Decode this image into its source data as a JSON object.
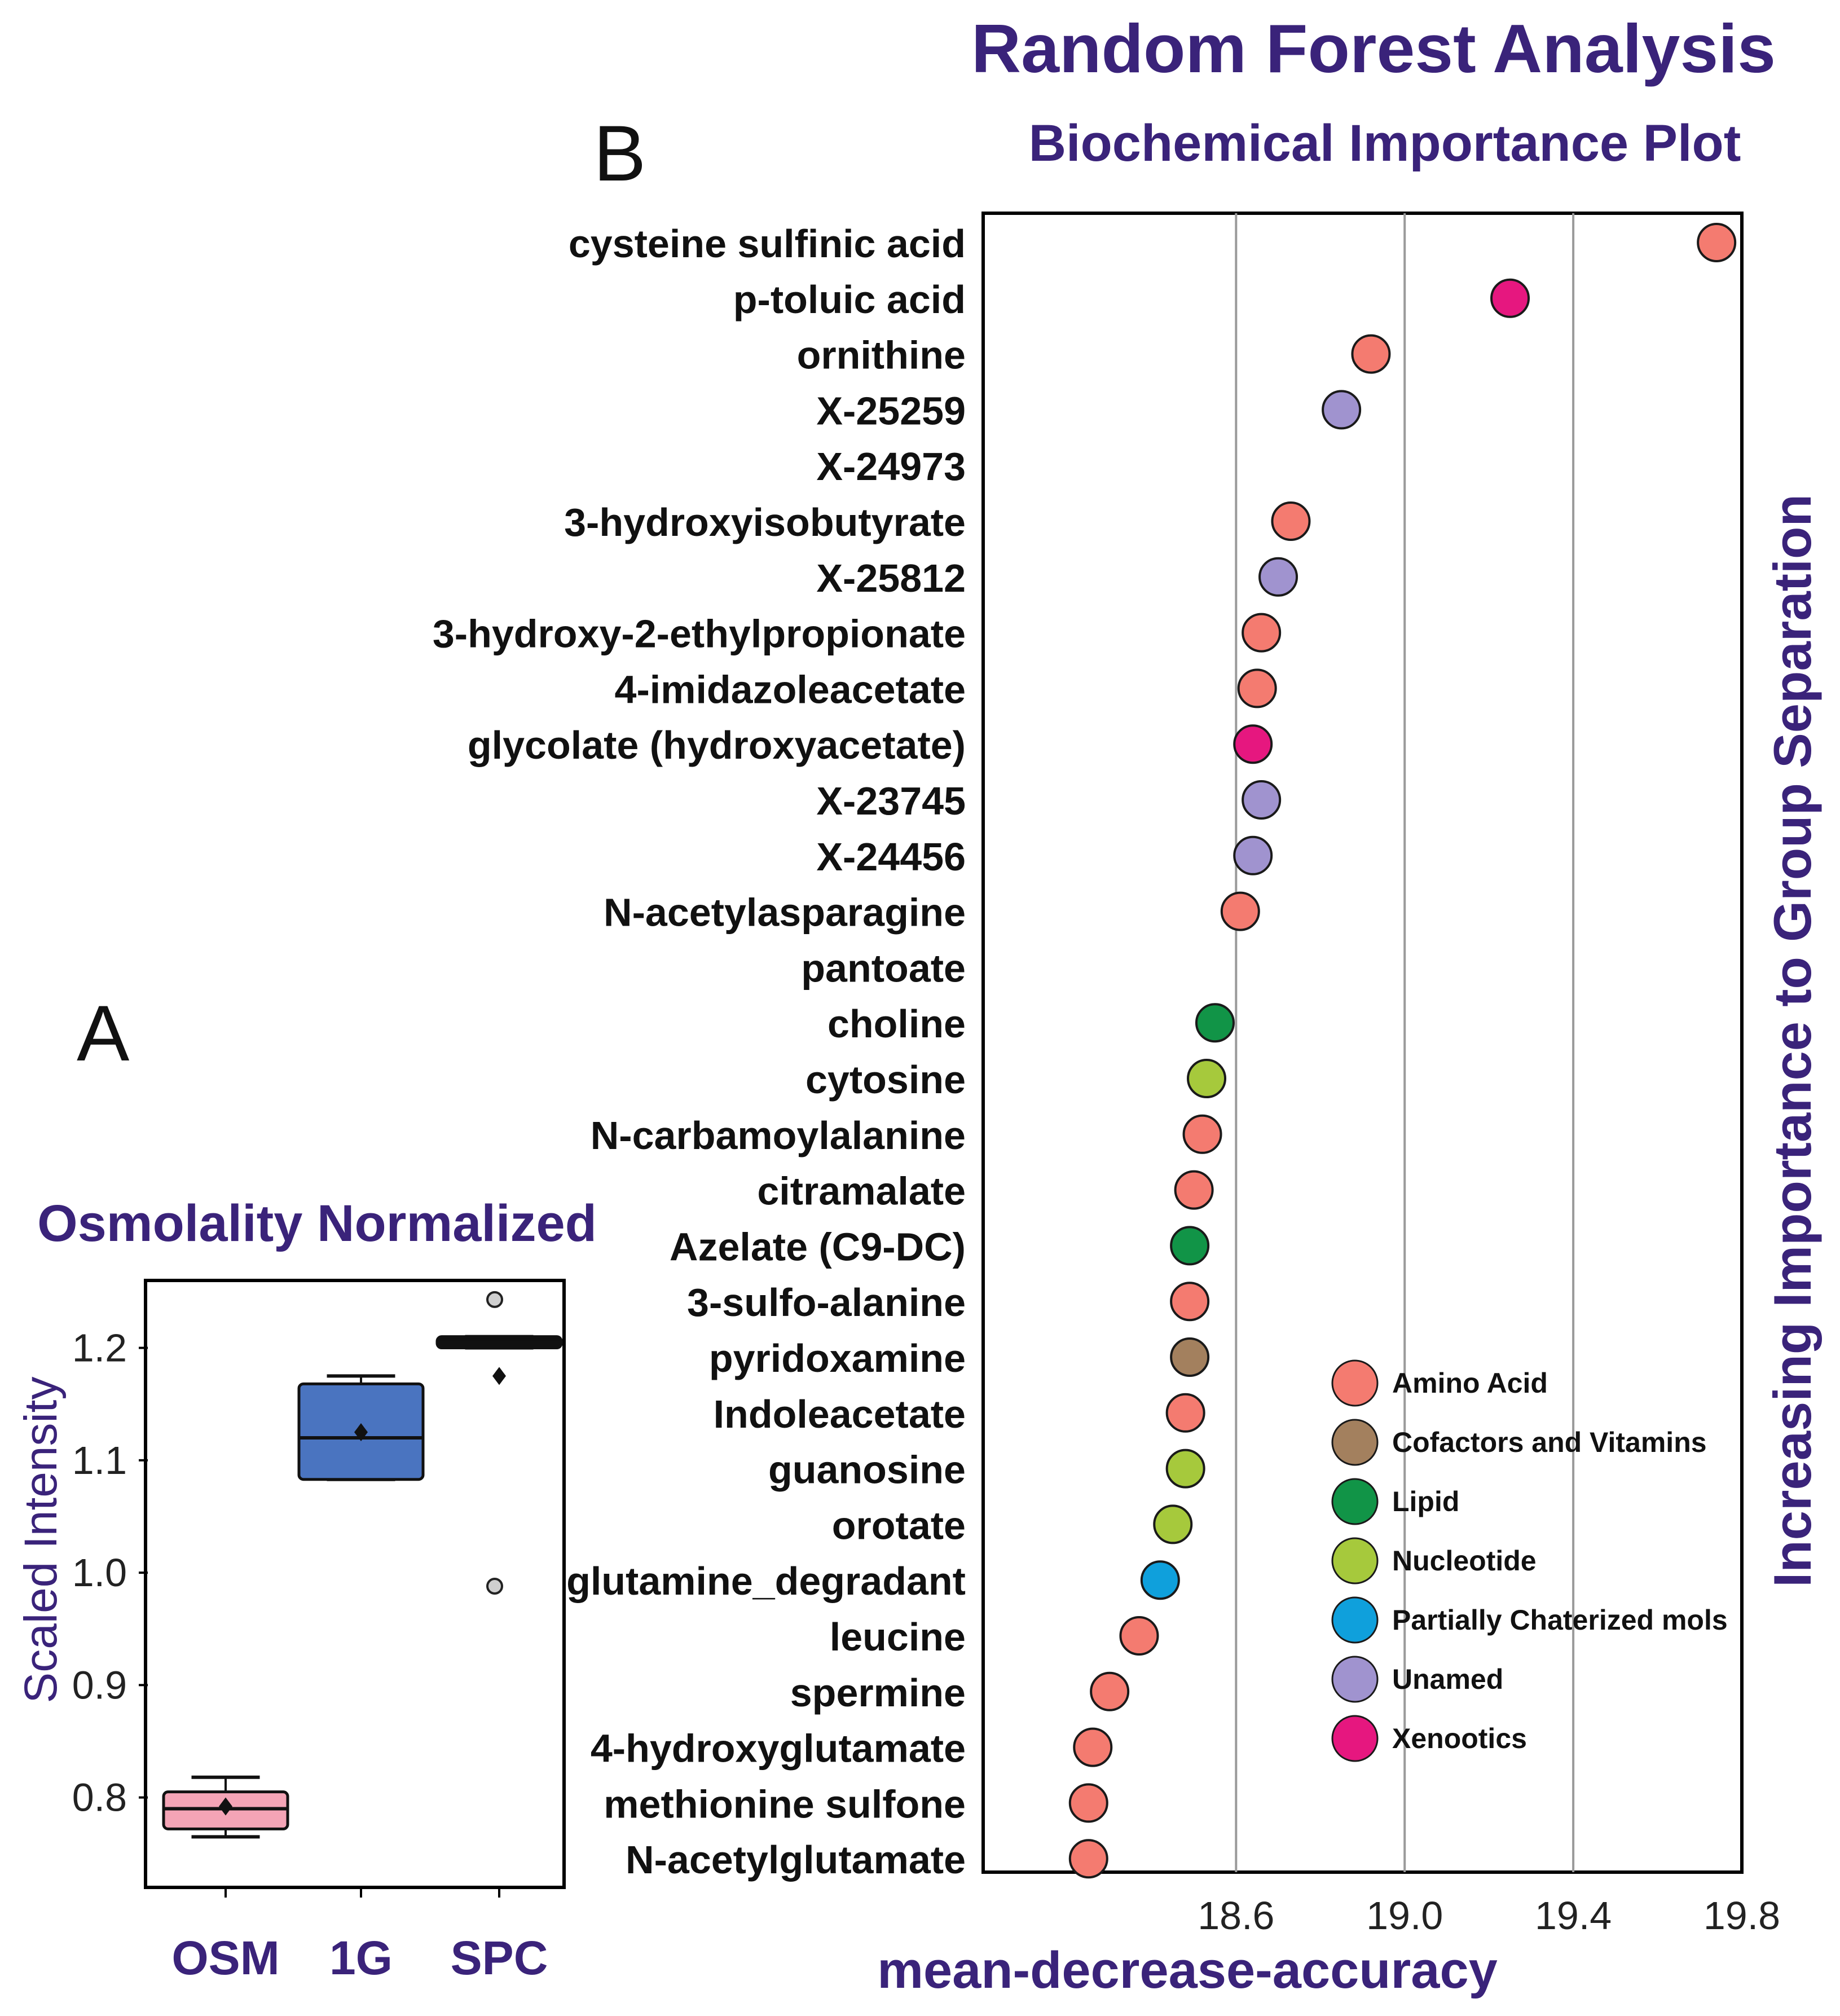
{
  "panel_labels": {
    "a": "A",
    "b": "B"
  },
  "colors": {
    "title": "#3a237a",
    "amino_acid": "#f47b70",
    "cofactors": "#a3805e",
    "lipid": "#119447",
    "nucleotide": "#a6c93c",
    "partially": "#0fa0dc",
    "unnamed": "#a093cf",
    "xenobiotics": "#e6177f",
    "box_osm": "#f4a4b6",
    "box_1g": "#4a74c0",
    "grid": "#9a9a9a"
  },
  "chart_data": [
    {
      "id": "A",
      "type": "box",
      "title": "Osmolality Normalized",
      "xlabel": "",
      "ylabel": "Scaled Intensity",
      "ylim": [
        0.72,
        1.26
      ],
      "yticks": [
        0.8,
        0.9,
        1.0,
        1.1,
        1.2
      ],
      "ytick_labels": [
        "0.8",
        "0.9",
        "1.0",
        "1.1",
        "1.2"
      ],
      "categories": [
        "OSM",
        "1G",
        "SPC"
      ],
      "boxes": [
        {
          "category": "OSM",
          "whisker_low": 0.765,
          "q1": 0.772,
          "median": 0.79,
          "q3": 0.805,
          "whisker_high": 0.818,
          "mean": 0.792,
          "outliers": [],
          "color_key": "box_osm"
        },
        {
          "category": "1G",
          "whisker_low": 1.083,
          "q1": 1.083,
          "median": 1.12,
          "q3": 1.168,
          "whisker_high": 1.175,
          "mean": 1.125,
          "outliers": [],
          "color_key": "box_1g"
        },
        {
          "category": "SPC",
          "whisker_low": 1.2,
          "q1": 1.2,
          "median": 1.205,
          "q3": 1.21,
          "whisker_high": 1.21,
          "mean": 1.175,
          "outliers": [
            1.243,
            0.988
          ],
          "color_key": ""
        }
      ]
    },
    {
      "id": "B",
      "type": "scatter",
      "title": "Random Forest Analysis",
      "subtitle": "Biochemical Importance Plot",
      "xlabel": "mean-decrease-accuracy",
      "ylabel": "Increasing Importance to Group Separation",
      "xlim": [
        18.0,
        19.8
      ],
      "xticks": [
        18.6,
        19.0,
        19.4,
        19.8
      ],
      "xtick_labels": [
        "18.6",
        "19.0",
        "19.4",
        "19.8"
      ],
      "grid": true,
      "points": [
        {
          "label": "cysteine sulfinic acid",
          "x": 19.74,
          "cat": "amino_acid"
        },
        {
          "label": "p-toluic acid",
          "x": 19.25,
          "cat": "xenobiotics"
        },
        {
          "label": "ornithine",
          "x": 18.92,
          "cat": "amino_acid"
        },
        {
          "label": "X-25259",
          "x": 18.85,
          "cat": "unnamed"
        },
        {
          "label": "X-24973",
          "x": null,
          "cat": ""
        },
        {
          "label": "3-hydroxyisobutyrate",
          "x": 18.73,
          "cat": "amino_acid"
        },
        {
          "label": "X-25812",
          "x": 18.7,
          "cat": "unnamed"
        },
        {
          "label": "3-hydroxy-2-ethylpropionate",
          "x": 18.66,
          "cat": "amino_acid"
        },
        {
          "label": "4-imidazoleacetate",
          "x": 18.65,
          "cat": "amino_acid"
        },
        {
          "label": "glycolate (hydroxyacetate)",
          "x": 18.64,
          "cat": "xenobiotics"
        },
        {
          "label": "X-23745",
          "x": 18.66,
          "cat": "unnamed"
        },
        {
          "label": "X-24456",
          "x": 18.64,
          "cat": "unnamed"
        },
        {
          "label": "N-acetylasparagine",
          "x": 18.61,
          "cat": "amino_acid"
        },
        {
          "label": "pantoate",
          "x": null,
          "cat": ""
        },
        {
          "label": "choline",
          "x": 18.55,
          "cat": "lipid"
        },
        {
          "label": "cytosine",
          "x": 18.53,
          "cat": "nucleotide"
        },
        {
          "label": "N-carbamoylalanine",
          "x": 18.52,
          "cat": "amino_acid"
        },
        {
          "label": "citramalate",
          "x": 18.5,
          "cat": "amino_acid"
        },
        {
          "label": "Azelate (C9-DC)",
          "x": 18.49,
          "cat": "lipid"
        },
        {
          "label": "3-sulfo-alanine",
          "x": 18.49,
          "cat": "amino_acid"
        },
        {
          "label": "pyridoxamine",
          "x": 18.49,
          "cat": "cofactors"
        },
        {
          "label": "Indoleacetate",
          "x": 18.48,
          "cat": "amino_acid"
        },
        {
          "label": "guanosine",
          "x": 18.48,
          "cat": "nucleotide"
        },
        {
          "label": "orotate",
          "x": 18.45,
          "cat": "nucleotide"
        },
        {
          "label": "glutamine_degradant",
          "x": 18.42,
          "cat": "partially"
        },
        {
          "label": "leucine",
          "x": 18.37,
          "cat": "amino_acid"
        },
        {
          "label": "spermine",
          "x": 18.3,
          "cat": "amino_acid"
        },
        {
          "label": "4-hydroxyglutamate",
          "x": 18.26,
          "cat": "amino_acid"
        },
        {
          "label": "methionine sulfone",
          "x": 18.25,
          "cat": "amino_acid"
        },
        {
          "label": "N-acetylglutamate",
          "x": 18.25,
          "cat": "amino_acid"
        }
      ],
      "legend": {
        "position": "bottom-right",
        "entries": [
          {
            "label": "Amino Acid",
            "cat": "amino_acid"
          },
          {
            "label": "Cofactors and Vitamins",
            "cat": "cofactors"
          },
          {
            "label": "Lipid",
            "cat": "lipid"
          },
          {
            "label": "Nucleotide",
            "cat": "nucleotide"
          },
          {
            "label": "Partially Chaterized mols",
            "cat": "partially"
          },
          {
            "label": "Unamed",
            "cat": "unnamed"
          },
          {
            "label": "Xenootics",
            "cat": "xenobiotics"
          }
        ]
      }
    }
  ]
}
